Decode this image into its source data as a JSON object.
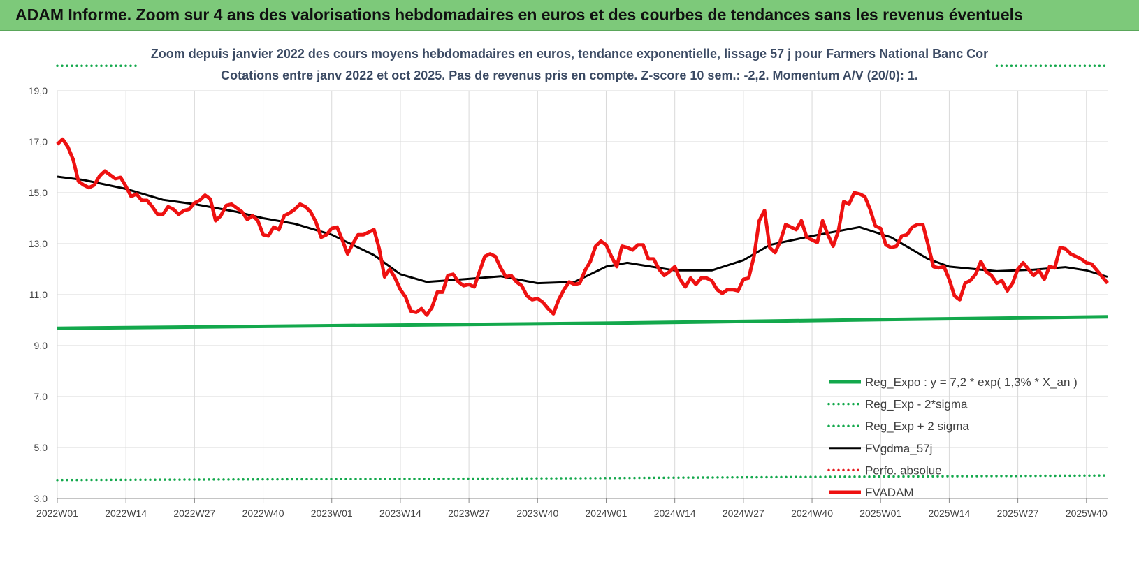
{
  "banner": {
    "title": "ADAM Informe. Zoom sur 4 ans des valorisations hebdomadaires en euros et des courbes de tendances sans les revenus éventuels"
  },
  "chart_data": {
    "type": "line",
    "title": "Zoom depuis janvier 2022 des cours moyens hebdomadaires en euros, tendance exponentielle, lissage 57 j pour Farmers National Banc Cor",
    "subtitle": "Cotations entre janv 2022 et oct 2025. Pas de revenus pris en compte. Z-score 10 sem.: -2,2. Momentum A/V (20/0): 1.",
    "ylim": [
      3,
      19
    ],
    "yticks": [
      "3,0",
      "5,0",
      "7,0",
      "9,0",
      "11,0",
      "13,0",
      "15,0",
      "17,0",
      "19,0"
    ],
    "ytick_values": [
      3,
      5,
      7,
      9,
      11,
      13,
      15,
      17,
      19
    ],
    "xticks": [
      "2022W01",
      "2022W14",
      "2022W27",
      "2022W40",
      "2023W01",
      "2023W14",
      "2023W27",
      "2023W40",
      "2024W01",
      "2024W14",
      "2024W27",
      "2024W40",
      "2025W01",
      "2025W14",
      "2025W27",
      "2025W40"
    ],
    "xtick_weeks": [
      0,
      13,
      26,
      39,
      52,
      65,
      78,
      91,
      104,
      117,
      130,
      143,
      156,
      169,
      182,
      195
    ],
    "x_max_week": 199,
    "grid": true,
    "legend_position": "bottom-right",
    "series": [
      {
        "name": "Reg_Expo : y = 7,2 * exp( 1,3% *  X_an )",
        "color": "#13a84c",
        "style": "solid-thick",
        "points": [
          [
            0,
            9.68
          ],
          [
            52,
            9.78
          ],
          [
            104,
            9.88
          ],
          [
            156,
            10.02
          ],
          [
            199,
            10.13
          ]
        ]
      },
      {
        "name": "Reg_Exp - 2*sigma",
        "color": "#13a84c",
        "style": "dotted",
        "points": [
          [
            0,
            3.72
          ],
          [
            52,
            3.76
          ],
          [
            104,
            3.8
          ],
          [
            156,
            3.86
          ],
          [
            199,
            3.9
          ]
        ]
      },
      {
        "name": "Reg_Exp + 2 sigma",
        "color": "#13a84c",
        "style": "dotted",
        "points": [
          [
            0,
            19.98
          ],
          [
            15,
            19.98
          ]
        ],
        "points_right": [
          [
            178,
            19.98
          ],
          [
            199,
            19.98
          ]
        ]
      },
      {
        "name": "FVgdma_57j",
        "color": "#000000",
        "style": "solid",
        "points": [
          [
            0,
            15.63
          ],
          [
            5,
            15.5
          ],
          [
            13,
            15.15
          ],
          [
            20,
            14.72
          ],
          [
            26,
            14.55
          ],
          [
            34,
            14.25
          ],
          [
            39,
            14.0
          ],
          [
            45,
            13.78
          ],
          [
            52,
            13.35
          ],
          [
            60,
            12.55
          ],
          [
            65,
            11.8
          ],
          [
            70,
            11.5
          ],
          [
            78,
            11.62
          ],
          [
            84,
            11.72
          ],
          [
            91,
            11.45
          ],
          [
            98,
            11.5
          ],
          [
            104,
            12.1
          ],
          [
            108,
            12.25
          ],
          [
            114,
            12.05
          ],
          [
            117,
            11.95
          ],
          [
            124,
            11.95
          ],
          [
            130,
            12.35
          ],
          [
            135,
            12.95
          ],
          [
            143,
            13.3
          ],
          [
            152,
            13.65
          ],
          [
            158,
            13.25
          ],
          [
            165,
            12.4
          ],
          [
            169,
            12.1
          ],
          [
            178,
            11.92
          ],
          [
            185,
            11.98
          ],
          [
            191,
            12.08
          ],
          [
            195,
            11.95
          ],
          [
            199,
            11.7
          ]
        ]
      },
      {
        "name": "Perfo. absolue",
        "color": "#e41a1c",
        "style": "dotted",
        "points": []
      },
      {
        "name": "FVADAM",
        "color": "#ee1111",
        "style": "solid-thick",
        "points": [
          [
            0,
            16.9
          ],
          [
            1,
            17.1
          ],
          [
            2,
            16.8
          ],
          [
            3,
            16.3
          ],
          [
            4,
            15.45
          ],
          [
            5,
            15.3
          ],
          [
            6,
            15.2
          ],
          [
            7,
            15.3
          ],
          [
            8,
            15.65
          ],
          [
            9,
            15.85
          ],
          [
            10,
            15.7
          ],
          [
            11,
            15.55
          ],
          [
            12,
            15.6
          ],
          [
            13,
            15.25
          ],
          [
            14,
            14.85
          ],
          [
            15,
            14.95
          ],
          [
            16,
            14.7
          ],
          [
            17,
            14.7
          ],
          [
            18,
            14.45
          ],
          [
            19,
            14.15
          ],
          [
            20,
            14.15
          ],
          [
            21,
            14.45
          ],
          [
            22,
            14.35
          ],
          [
            23,
            14.15
          ],
          [
            24,
            14.3
          ],
          [
            25,
            14.35
          ],
          [
            26,
            14.6
          ],
          [
            27,
            14.7
          ],
          [
            28,
            14.9
          ],
          [
            29,
            14.75
          ],
          [
            30,
            13.9
          ],
          [
            31,
            14.1
          ],
          [
            32,
            14.5
          ],
          [
            33,
            14.55
          ],
          [
            34,
            14.4
          ],
          [
            35,
            14.25
          ],
          [
            36,
            13.95
          ],
          [
            37,
            14.1
          ],
          [
            38,
            13.9
          ],
          [
            39,
            13.35
          ],
          [
            40,
            13.3
          ],
          [
            41,
            13.65
          ],
          [
            42,
            13.55
          ],
          [
            43,
            14.1
          ],
          [
            44,
            14.2
          ],
          [
            45,
            14.35
          ],
          [
            46,
            14.55
          ],
          [
            47,
            14.45
          ],
          [
            48,
            14.25
          ],
          [
            49,
            13.85
          ],
          [
            50,
            13.25
          ],
          [
            51,
            13.35
          ],
          [
            52,
            13.6
          ],
          [
            53,
            13.65
          ],
          [
            54,
            13.15
          ],
          [
            55,
            12.6
          ],
          [
            56,
            13.0
          ],
          [
            57,
            13.35
          ],
          [
            58,
            13.35
          ],
          [
            59,
            13.45
          ],
          [
            60,
            13.55
          ],
          [
            61,
            12.8
          ],
          [
            62,
            11.7
          ],
          [
            63,
            12.0
          ],
          [
            64,
            11.65
          ],
          [
            65,
            11.2
          ],
          [
            66,
            10.9
          ],
          [
            67,
            10.35
          ],
          [
            68,
            10.3
          ],
          [
            69,
            10.45
          ],
          [
            70,
            10.2
          ],
          [
            71,
            10.5
          ],
          [
            72,
            11.1
          ],
          [
            73,
            11.1
          ],
          [
            74,
            11.75
          ],
          [
            75,
            11.8
          ],
          [
            76,
            11.5
          ],
          [
            77,
            11.35
          ],
          [
            78,
            11.4
          ],
          [
            79,
            11.3
          ],
          [
            80,
            11.9
          ],
          [
            81,
            12.5
          ],
          [
            82,
            12.6
          ],
          [
            83,
            12.5
          ],
          [
            84,
            12.05
          ],
          [
            85,
            11.7
          ],
          [
            86,
            11.75
          ],
          [
            87,
            11.5
          ],
          [
            88,
            11.35
          ],
          [
            89,
            10.95
          ],
          [
            90,
            10.8
          ],
          [
            91,
            10.85
          ],
          [
            92,
            10.7
          ],
          [
            93,
            10.45
          ],
          [
            94,
            10.25
          ],
          [
            95,
            10.8
          ],
          [
            96,
            11.2
          ],
          [
            97,
            11.5
          ],
          [
            98,
            11.4
          ],
          [
            99,
            11.45
          ],
          [
            100,
            11.95
          ],
          [
            101,
            12.3
          ],
          [
            102,
            12.9
          ],
          [
            103,
            13.1
          ],
          [
            104,
            12.95
          ],
          [
            105,
            12.5
          ],
          [
            106,
            12.1
          ],
          [
            107,
            12.9
          ],
          [
            108,
            12.85
          ],
          [
            109,
            12.75
          ],
          [
            110,
            12.95
          ],
          [
            111,
            12.95
          ],
          [
            112,
            12.4
          ],
          [
            113,
            12.4
          ],
          [
            114,
            12.0
          ],
          [
            115,
            11.75
          ],
          [
            116,
            11.9
          ],
          [
            117,
            12.1
          ],
          [
            118,
            11.6
          ],
          [
            119,
            11.3
          ],
          [
            120,
            11.65
          ],
          [
            121,
            11.4
          ],
          [
            122,
            11.65
          ],
          [
            123,
            11.65
          ],
          [
            124,
            11.55
          ],
          [
            125,
            11.2
          ],
          [
            126,
            11.05
          ],
          [
            127,
            11.2
          ],
          [
            128,
            11.2
          ],
          [
            129,
            11.15
          ],
          [
            130,
            11.6
          ],
          [
            131,
            11.65
          ],
          [
            132,
            12.5
          ],
          [
            133,
            13.9
          ],
          [
            134,
            14.3
          ],
          [
            135,
            12.85
          ],
          [
            136,
            12.65
          ],
          [
            137,
            13.1
          ],
          [
            138,
            13.75
          ],
          [
            139,
            13.65
          ],
          [
            140,
            13.55
          ],
          [
            141,
            13.9
          ],
          [
            142,
            13.25
          ],
          [
            143,
            13.15
          ],
          [
            144,
            13.05
          ],
          [
            145,
            13.9
          ],
          [
            146,
            13.35
          ],
          [
            147,
            12.9
          ],
          [
            148,
            13.5
          ],
          [
            149,
            14.65
          ],
          [
            150,
            14.55
          ],
          [
            151,
            15.0
          ],
          [
            152,
            14.95
          ],
          [
            153,
            14.85
          ],
          [
            154,
            14.35
          ],
          [
            155,
            13.7
          ],
          [
            156,
            13.6
          ],
          [
            157,
            12.95
          ],
          [
            158,
            12.85
          ],
          [
            159,
            12.9
          ],
          [
            160,
            13.3
          ],
          [
            161,
            13.35
          ],
          [
            162,
            13.65
          ],
          [
            163,
            13.75
          ],
          [
            164,
            13.75
          ],
          [
            165,
            12.95
          ],
          [
            166,
            12.1
          ],
          [
            167,
            12.05
          ],
          [
            168,
            12.1
          ],
          [
            169,
            11.6
          ],
          [
            170,
            10.95
          ],
          [
            171,
            10.8
          ],
          [
            172,
            11.45
          ],
          [
            173,
            11.55
          ],
          [
            174,
            11.8
          ],
          [
            175,
            12.3
          ],
          [
            176,
            11.9
          ],
          [
            177,
            11.75
          ],
          [
            178,
            11.45
          ],
          [
            179,
            11.55
          ],
          [
            180,
            11.15
          ],
          [
            181,
            11.45
          ],
          [
            182,
            12.0
          ],
          [
            183,
            12.25
          ],
          [
            184,
            12.0
          ],
          [
            185,
            11.75
          ],
          [
            186,
            11.95
          ],
          [
            187,
            11.6
          ],
          [
            188,
            12.1
          ],
          [
            189,
            12.05
          ],
          [
            190,
            12.85
          ],
          [
            191,
            12.8
          ],
          [
            192,
            12.6
          ],
          [
            193,
            12.5
          ],
          [
            194,
            12.4
          ],
          [
            195,
            12.25
          ],
          [
            196,
            12.2
          ],
          [
            197,
            11.95
          ],
          [
            198,
            11.7
          ],
          [
            199,
            11.45
          ]
        ]
      }
    ]
  }
}
